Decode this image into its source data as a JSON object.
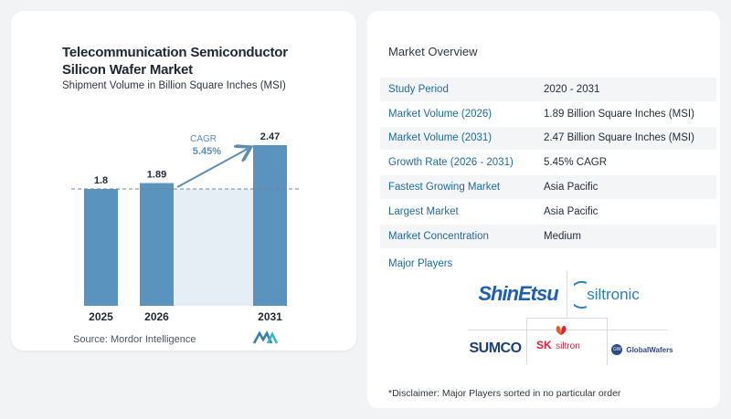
{
  "chart": {
    "title_line1": "Telecommunication Semiconductor",
    "title_line2": "Silicon Wafer Market",
    "subtitle": "Shipment Volume in Billion Square Inches (MSI)",
    "source": "Source: Mordor Intelligence",
    "cagr_label": "CAGR",
    "cagr_value": "5.45%"
  },
  "chart_data": {
    "type": "bar",
    "title": "Telecommunication Semiconductor Silicon Wafer Market",
    "subtitle": "Shipment Volume in Billion Square Inches (MSI)",
    "categories": [
      "2025",
      "2026",
      "2031"
    ],
    "values": [
      1.8,
      1.89,
      2.47
    ],
    "value_labels": [
      "1.8",
      "1.89",
      "2.47"
    ],
    "annotation": "CAGR 5.45%",
    "grid": false,
    "colors": {
      "bar": "#5a93bd",
      "shade": "#e6eef5",
      "dashed": "#6f8597",
      "accent": "#5b8db5"
    }
  },
  "overview": {
    "title": "Market Overview",
    "rows": [
      {
        "label": "Study Period",
        "value": "2020 - 2031"
      },
      {
        "label": "Market Volume (2026)",
        "value": "1.89 Billion Square Inches (MSI)"
      },
      {
        "label": "Market Volume (2031)",
        "value": "2.47 Billion Square Inches (MSI)"
      },
      {
        "label": "Growth Rate (2026 - 2031)",
        "value": "5.45% CAGR"
      },
      {
        "label": "Fastest Growing Market",
        "value": "Asia Pacific"
      },
      {
        "label": "Largest Market",
        "value": "Asia Pacific"
      },
      {
        "label": "Market Concentration",
        "value": "Medium"
      }
    ],
    "players_label": "Major Players",
    "players": {
      "shinetsu": "ShinEtsu",
      "siltronic": "siltronic",
      "sumco": "SUMCO",
      "sk_prefix": "SK",
      "sk_name": "siltron",
      "globalwafers": "GlobalWafers",
      "gw_badge": "GW"
    },
    "disclaimer": "*Disclaimer: Major Players sorted in no particular order"
  }
}
